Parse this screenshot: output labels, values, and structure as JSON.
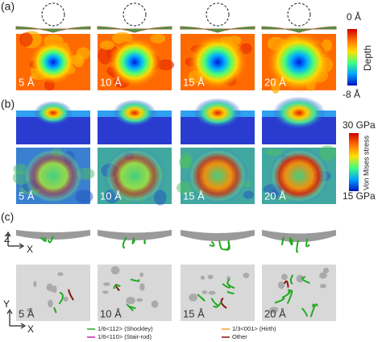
{
  "panels": {
    "a": "(a)",
    "b": "(b)",
    "c": "(c)"
  },
  "panel_labels": [
    "5 Å",
    "10 Å",
    "15 Å",
    "20 Å"
  ],
  "depth_bar": {
    "top": "0 Å",
    "bottom": "-8 Å",
    "title": "Depth"
  },
  "stress_bar": {
    "top": "30 GPa",
    "bottom": "15 GPa",
    "title": "Von Mises stress"
  },
  "axes": {
    "side": {
      "vertical": "Z",
      "horizontal": "X"
    },
    "top": {
      "vertical": "Y",
      "horizontal": "X"
    }
  },
  "legend": [
    "1/6<112> (Shockley)",
    "1/6<110> (Stair-rod)",
    "1/3<001> (Hirth)",
    "Other"
  ]
}
